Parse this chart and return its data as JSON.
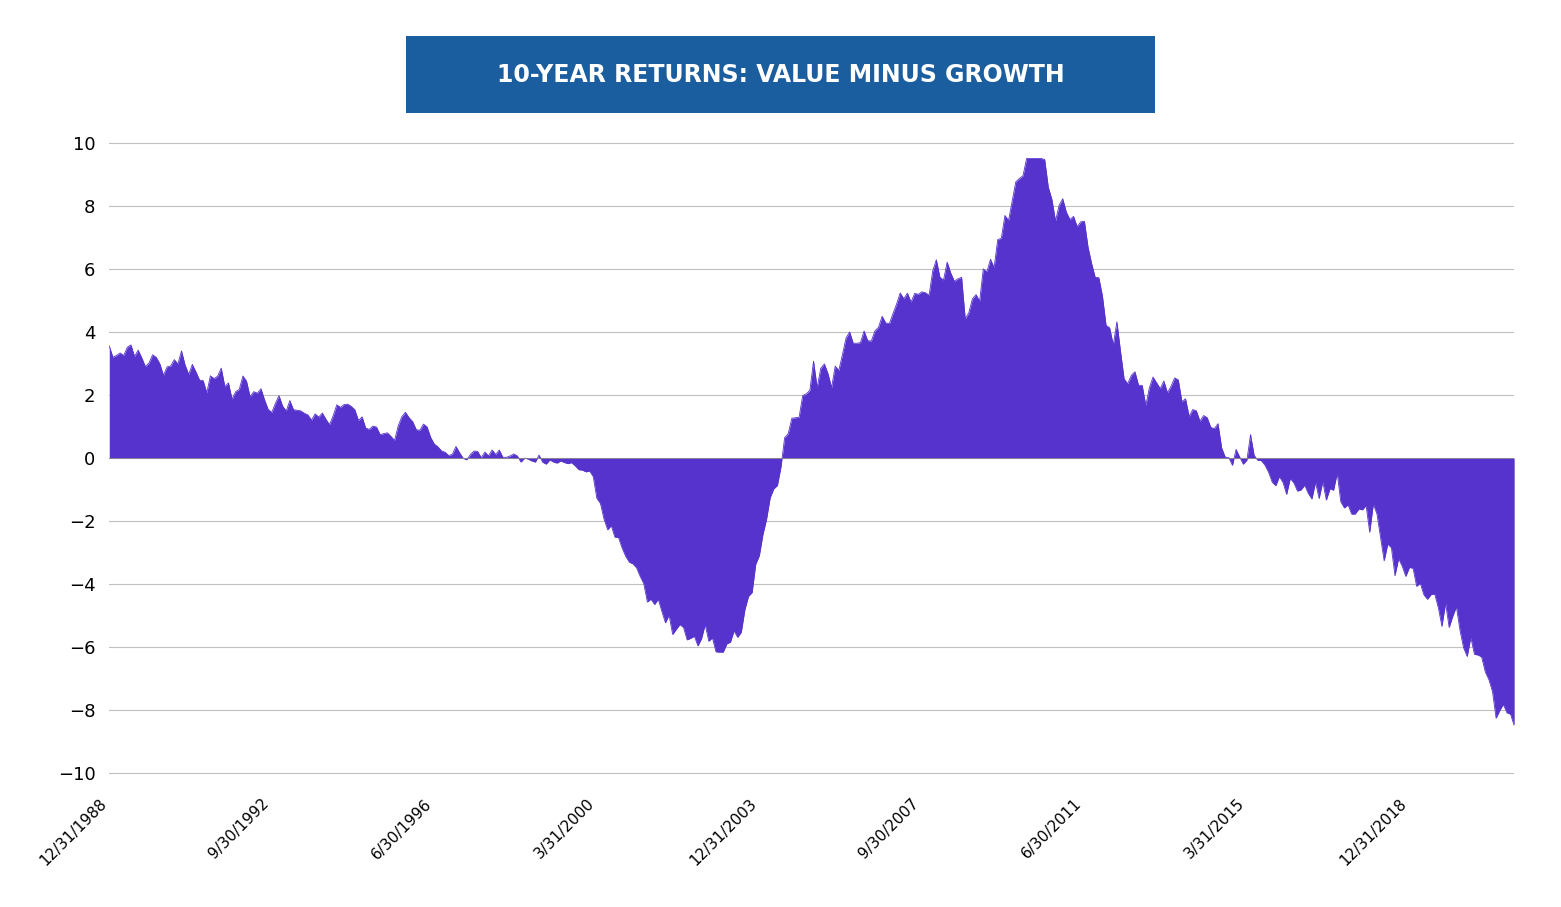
{
  "title": "10-YEAR RETURNS: VALUE MINUS GROWTH",
  "title_bg_color": "#1B5EA0",
  "title_text_color": "#FFFFFF",
  "fill_color": "#5533CC",
  "line_color": "#5533CC",
  "background_color": "#FFFFFF",
  "grid_color": "#C0C0C0",
  "yticks": [
    -10,
    -8,
    -6,
    -4,
    -2,
    0,
    2,
    4,
    6,
    8,
    10
  ],
  "ylim": [
    -10.5,
    10.5
  ],
  "xtick_labels": [
    "12/31/1988",
    "9/30/1992",
    "6/30/1996",
    "3/31/2000",
    "12/31/2003",
    "9/30/2007",
    "6/30/2011",
    "3/31/2015",
    "12/31/2018"
  ]
}
